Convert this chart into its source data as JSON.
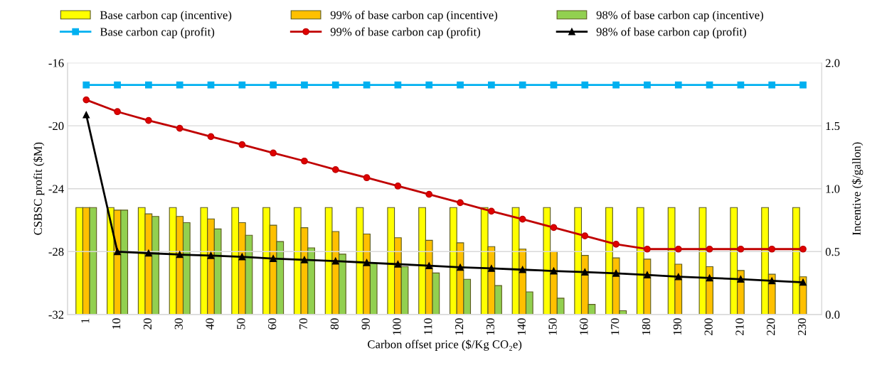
{
  "chart_data": {
    "type": "bar",
    "xlabel": "Carbon offset price ($/Kg CO₂e)",
    "ylabel": "CSBSC profit ($M)",
    "y2label": "Incentive ($/gallon)",
    "categories": [
      "1",
      "10",
      "20",
      "30",
      "40",
      "50",
      "60",
      "70",
      "80",
      "90",
      "100",
      "110",
      "120",
      "130",
      "140",
      "150",
      "160",
      "170",
      "180",
      "190",
      "200",
      "210",
      "220",
      "230"
    ],
    "ylim": [
      -32,
      -16
    ],
    "yticks": [
      -32,
      -28,
      -24,
      -20,
      -16
    ],
    "y2lim": [
      0,
      2
    ],
    "y2ticks": [
      {
        "value": 0,
        "label": "0.0"
      },
      {
        "value": 0.5,
        "label": "0.5"
      },
      {
        "value": 1,
        "label": "1.0"
      },
      {
        "value": 1.5,
        "label": "1.5"
      },
      {
        "value": 2,
        "label": "2.0"
      }
    ],
    "grid": "y",
    "legend": "top",
    "series": [
      {
        "name": "Base carbon cap (incentive)",
        "axis": "y2",
        "color": "#ffff00",
        "values": [
          0.85,
          0.85,
          0.85,
          0.85,
          0.85,
          0.85,
          0.85,
          0.85,
          0.85,
          0.85,
          0.85,
          0.85,
          0.85,
          0.85,
          0.85,
          0.85,
          0.85,
          0.85,
          0.85,
          0.85,
          0.85,
          0.85,
          0.85,
          0.85
        ]
      },
      {
        "name": "99% of base carbon cap (incentive)",
        "axis": "y2",
        "color": "#ffc000",
        "values": [
          0.85,
          0.83,
          0.8,
          0.78,
          0.76,
          0.73,
          0.71,
          0.69,
          0.66,
          0.64,
          0.61,
          0.59,
          0.57,
          0.54,
          0.52,
          0.5,
          0.47,
          0.45,
          0.44,
          0.4,
          0.38,
          0.35,
          0.32,
          0.3
        ]
      },
      {
        "name": "98% of base carbon cap (incentive)",
        "axis": "y2",
        "color": "#92d050",
        "values": [
          0.85,
          0.83,
          0.78,
          0.73,
          0.68,
          0.63,
          0.58,
          0.53,
          0.48,
          0.41,
          0.38,
          0.33,
          0.28,
          0.23,
          0.18,
          0.13,
          0.08,
          0.03,
          null,
          null,
          null,
          null,
          null,
          null
        ]
      },
      {
        "name": "Base carbon cap (profit)",
        "type": "line",
        "color": "#00b0f0",
        "marker": "square",
        "values": [
          -17.4,
          -17.4,
          -17.4,
          -17.4,
          -17.4,
          -17.4,
          -17.4,
          -17.4,
          -17.4,
          -17.4,
          -17.4,
          -17.4,
          -17.4,
          -17.4,
          -17.4,
          -17.4,
          -17.4,
          -17.4,
          -17.4,
          -17.4,
          -17.4,
          -17.4,
          -17.4,
          -17.4
        ]
      },
      {
        "name": "99% of base carbon cap (profit)",
        "type": "line",
        "color": "#c00000",
        "marker": "circle",
        "values": [
          -18.35,
          -19.1,
          -19.66,
          -20.16,
          -20.69,
          -21.2,
          -21.73,
          -22.24,
          -22.79,
          -23.3,
          -23.83,
          -24.36,
          -24.89,
          -25.43,
          -25.94,
          -26.47,
          -27.0,
          -27.53,
          -27.84,
          -27.84,
          -27.84,
          -27.84,
          -27.84,
          -27.84
        ]
      },
      {
        "name": "98% of base carbon cap (profit)",
        "type": "line",
        "color": "#000000",
        "marker": "triangle",
        "values": [
          -19.3,
          -28.0,
          -28.1,
          -28.19,
          -28.25,
          -28.33,
          -28.44,
          -28.52,
          -28.6,
          -28.7,
          -28.8,
          -28.9,
          -29.0,
          -29.07,
          -29.15,
          -29.23,
          -29.3,
          -29.38,
          -29.48,
          -29.6,
          -29.68,
          -29.75,
          -29.86,
          -29.95
        ]
      }
    ]
  }
}
